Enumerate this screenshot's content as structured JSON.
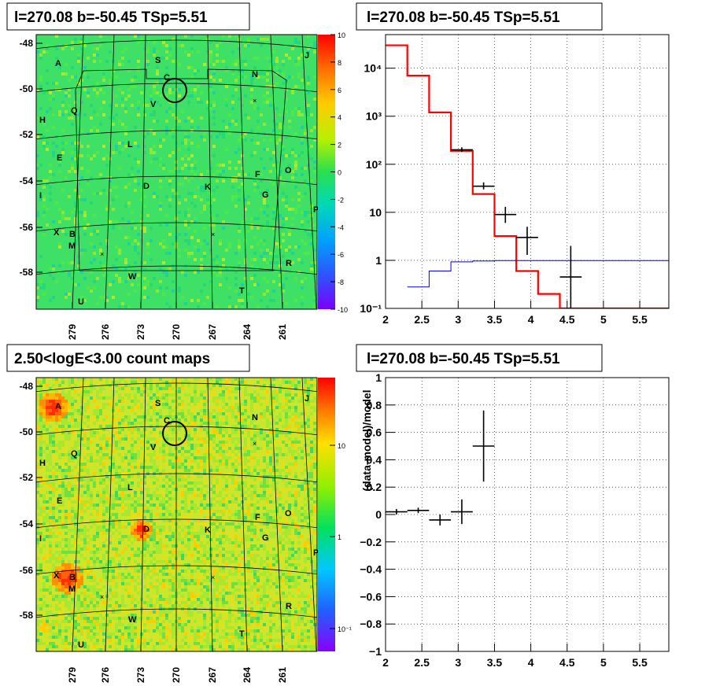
{
  "panels": {
    "top_left_title": "l=270.08 b=-50.45 TSp=5.51",
    "top_right_title": "l=270.08 b=-50.45 TSp=5.51",
    "bottom_left_title": "2.50<logE<3.00 count maps",
    "bottom_right_title": "l=270.08 b=-50.45 TSp=5.51"
  },
  "skymap": {
    "lon_ticks": [
      "279",
      "276",
      "273",
      "270",
      "267",
      "264",
      "261"
    ],
    "lat_ticks": [
      "-48",
      "-50",
      "-52",
      "-54",
      "-56",
      "-58"
    ],
    "source_labels": [
      "A",
      "J",
      "S",
      "C",
      "N",
      "V",
      "Q",
      "H",
      "L",
      "E",
      "F",
      "O",
      "D",
      "K",
      "G",
      "I",
      "P",
      "X",
      "B",
      "M",
      "R",
      "W",
      "T",
      "U"
    ]
  },
  "colorbars": {
    "residual_ticks": [
      "10",
      "8",
      "6",
      "4",
      "2",
      "0",
      "-2",
      "-4",
      "-6",
      "-8",
      "-10"
    ],
    "count_ticks": [
      "10",
      "1",
      "10⁻¹"
    ]
  },
  "chart_data": [
    {
      "type": "heatmap",
      "title": "l=270.08 b=-50.45 TSp=5.51",
      "description_axes": "galactic longitude vs latitude",
      "x_ticks": [
        279,
        276,
        273,
        270,
        267,
        264,
        261
      ],
      "y_ticks": [
        -48,
        -50,
        -52,
        -54,
        -56,
        -58
      ],
      "colorbar_range": [
        -10,
        10
      ],
      "colorbar_ticks": [
        10,
        8,
        6,
        4,
        2,
        0,
        -2,
        -4,
        -6,
        -8,
        -10
      ]
    },
    {
      "type": "line",
      "title": "l=270.08 b=-50.45 TSp=5.51",
      "xlim": [
        2,
        5.9
      ],
      "ylim": [
        0.1,
        50000
      ],
      "yscale": "log",
      "x_ticks": [
        "2",
        "2.5",
        "3",
        "3.5",
        "4",
        "4.5",
        "5",
        "5.5"
      ],
      "y_ticks": [
        "10⁻¹",
        "1",
        "10",
        "10²",
        "10³",
        "10⁴"
      ],
      "grid": true,
      "series": [
        {
          "style": "step",
          "color": "#ff0000",
          "edges": [
            2.0,
            2.3,
            2.6,
            2.9,
            3.2,
            3.5,
            3.8,
            4.1,
            4.4,
            5.9
          ],
          "values": [
            30000,
            7000,
            1200,
            190,
            24,
            3.2,
            0.6,
            0.2,
            0.1
          ]
        },
        {
          "style": "step",
          "color": "#0000cc",
          "edges": [
            2.3,
            2.6,
            2.9,
            3.2,
            3.5,
            5.9
          ],
          "values": [
            0.28,
            0.6,
            0.93,
            0.97,
            0.99
          ]
        },
        {
          "style": "errorbars",
          "color": "#000000",
          "x": [
            3.05,
            3.35,
            3.65,
            3.95,
            4.55
          ],
          "y": [
            200,
            35,
            9,
            3,
            0.45
          ],
          "xerr": [
            0.15,
            0.15,
            0.15,
            0.15,
            0.15
          ],
          "ylo": [
            180,
            30,
            6,
            1.3,
            0.1
          ],
          "yhi": [
            225,
            42,
            13,
            5,
            2
          ]
        }
      ]
    },
    {
      "type": "heatmap",
      "title": "2.50<logE<3.00 count maps",
      "x_ticks": [
        279,
        276,
        273,
        270,
        267,
        264,
        261
      ],
      "y_ticks": [
        -48,
        -50,
        -52,
        -54,
        -56,
        -58
      ],
      "colorbar_scale": "log",
      "colorbar_ticks": [
        "10",
        "1",
        "10⁻¹"
      ],
      "hotspots": [
        "A",
        "B",
        "D"
      ]
    },
    {
      "type": "scatter",
      "title": "l=270.08 b=-50.45 TSp=5.51",
      "ylabel": "(data-model)/model",
      "xlim": [
        2,
        5.9
      ],
      "ylim": [
        -1,
        1
      ],
      "x_ticks": [
        "2",
        "2.5",
        "3",
        "3.5",
        "4",
        "4.5",
        "5",
        "5.5"
      ],
      "y_ticks": [
        "1",
        "0.8",
        "0.6",
        "0.4",
        "0.2",
        "0",
        "−0.2",
        "−0.4",
        "−0.6",
        "−0.8",
        "−1"
      ],
      "grid": true,
      "series": [
        {
          "style": "errorbars",
          "color": "#000000",
          "x": [
            2.15,
            2.45,
            2.75,
            3.05,
            3.35
          ],
          "y": [
            0.02,
            0.03,
            -0.04,
            0.02,
            0.5
          ],
          "xerr": [
            0.15,
            0.15,
            0.15,
            0.15,
            0.15
          ],
          "yerr": [
            0.02,
            0.02,
            0.04,
            0.09,
            0.26
          ]
        }
      ]
    }
  ]
}
